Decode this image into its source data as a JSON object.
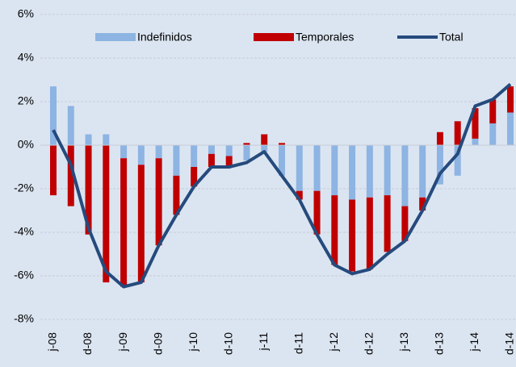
{
  "chart_data": {
    "type": "bar",
    "categories": [
      "j-08",
      null,
      "d-08",
      null,
      "j-09",
      null,
      "d-09",
      null,
      "j-10",
      null,
      "d-10",
      null,
      "j-11",
      null,
      "d-11",
      null,
      "j-12",
      null,
      "d-12",
      null,
      "j-13",
      null,
      "d-13",
      null,
      "j-14",
      null,
      "d-14"
    ],
    "series": [
      {
        "name": "Indefinidos",
        "color": "#8db4e2",
        "values": [
          2.7,
          1.8,
          0.5,
          0.5,
          -0.6,
          -0.9,
          -0.6,
          -1.4,
          -1.0,
          -0.4,
          -0.5,
          -0.7,
          -0.3,
          -1.4,
          -2.1,
          -2.1,
          -2.3,
          -2.5,
          -2.4,
          -2.3,
          -2.8,
          -2.4,
          -1.8,
          -1.4,
          0.3,
          1.0,
          1.5
        ]
      },
      {
        "name": "Temporales",
        "color": "#c00000",
        "values": [
          -2.3,
          -2.8,
          -4.1,
          -6.3,
          -5.9,
          -5.4,
          -4.0,
          -1.8,
          -0.9,
          -0.6,
          -0.5,
          0.1,
          0.5,
          0.1,
          -0.4,
          -2.0,
          -3.2,
          -3.3,
          -3.3,
          -2.6,
          -1.6,
          -0.6,
          0.6,
          1.1,
          1.4,
          1.1,
          1.2
        ]
      },
      {
        "name": "Total",
        "type": "line",
        "color": "#254a7d",
        "values": [
          0.7,
          -0.9,
          -3.8,
          -5.8,
          -6.5,
          -6.3,
          -4.6,
          -3.2,
          -1.9,
          -1.0,
          -1.0,
          -0.8,
          -0.3,
          -1.4,
          -2.5,
          -4.1,
          -5.5,
          -5.9,
          -5.7,
          -5.0,
          -4.4,
          -3.0,
          -1.3,
          -0.4,
          1.8,
          2.1,
          2.8
        ]
      }
    ],
    "ylim": [
      -8,
      6
    ],
    "yticks": [
      {
        "value": -8,
        "label": "-8%"
      },
      {
        "value": -6,
        "label": "-6%"
      },
      {
        "value": -4,
        "label": "-4%"
      },
      {
        "value": -2,
        "label": "-2%"
      },
      {
        "value": 0,
        "label": "0%"
      },
      {
        "value": 2,
        "label": "2%"
      },
      {
        "value": 4,
        "label": "4%"
      },
      {
        "value": 6,
        "label": "6%"
      }
    ],
    "grid": true,
    "legend": "top"
  }
}
